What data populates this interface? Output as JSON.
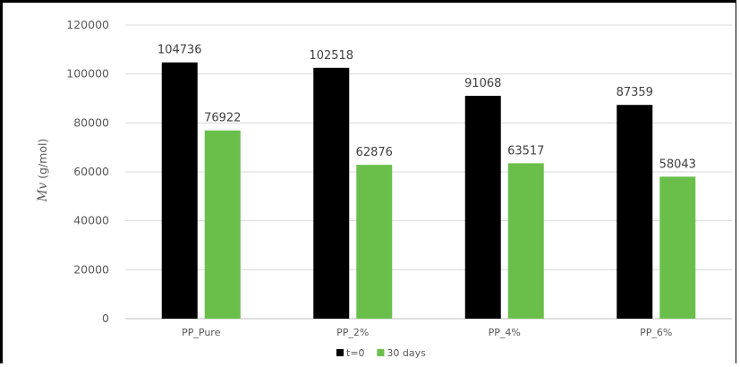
{
  "chart_data": {
    "type": "bar",
    "title": "",
    "xlabel": "",
    "ylabel_var": "Mv",
    "ylabel_unit": " (g/mol)",
    "categories": [
      "PP_Pure",
      "PP_2%",
      "PP_4%",
      "PP_6%"
    ],
    "series": [
      {
        "name": "t=0",
        "color": "#000000",
        "values": [
          104736,
          102518,
          91068,
          87359
        ]
      },
      {
        "name": "30 days",
        "color": "#6abf4b",
        "values": [
          76922,
          62876,
          63517,
          58043
        ]
      }
    ],
    "ylim": [
      0,
      120000
    ],
    "yticks": [
      0,
      20000,
      40000,
      60000,
      80000,
      100000,
      120000
    ],
    "grid": true,
    "legend_position": "bottom"
  }
}
